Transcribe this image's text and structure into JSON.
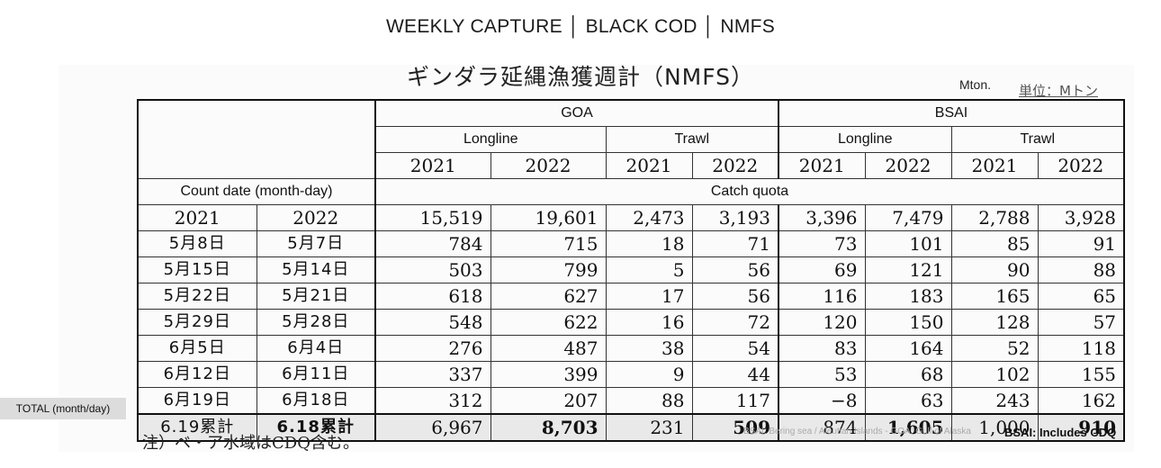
{
  "header_title": "WEEKLY CAPTURE │ BLACK COD │ NMFS",
  "jp_title": "ギンダラ延縄漁獲週計（NMFS）",
  "unit_en": "Mton.",
  "unit_jp": "単位：Mトン",
  "table": {
    "goa": "GOA",
    "bsai": "BSAI",
    "longline": "Longline",
    "trawl": "Trawl",
    "years": [
      "2021",
      "2022",
      "2021",
      "2022",
      "2021",
      "2022",
      "2021",
      "2022"
    ],
    "count_date": "Count date (month-day)",
    "catch_quota": "Catch quota",
    "quota_years": [
      "2021",
      "2022"
    ],
    "quota_values": [
      "15,519",
      "19,601",
      "2,473",
      "3,193",
      "3,396",
      "7,479",
      "2,788",
      "3,928"
    ],
    "rows": [
      {
        "d2021": "5月8日",
        "d2022": "5月7日",
        "values": [
          "784",
          "715",
          "18",
          "71",
          "73",
          "101",
          "85",
          "91"
        ]
      },
      {
        "d2021": "5月15日",
        "d2022": "5月14日",
        "values": [
          "503",
          "799",
          "5",
          "56",
          "69",
          "121",
          "90",
          "88"
        ]
      },
      {
        "d2021": "5月22日",
        "d2022": "5月21日",
        "values": [
          "618",
          "627",
          "17",
          "56",
          "116",
          "183",
          "165",
          "65"
        ]
      },
      {
        "d2021": "5月29日",
        "d2022": "5月28日",
        "values": [
          "548",
          "622",
          "16",
          "72",
          "120",
          "150",
          "128",
          "57"
        ]
      },
      {
        "d2021": "6月5日",
        "d2022": "6月4日",
        "values": [
          "276",
          "487",
          "38",
          "54",
          "83",
          "164",
          "52",
          "118"
        ]
      },
      {
        "d2021": "6月12日",
        "d2022": "6月11日",
        "values": [
          "337",
          "399",
          "9",
          "44",
          "53",
          "68",
          "102",
          "155"
        ]
      },
      {
        "d2021": "6月19日",
        "d2022": "6月18日",
        "values": [
          "312",
          "207",
          "88",
          "117",
          "−8",
          "63",
          "243",
          "162"
        ]
      }
    ],
    "total": {
      "d2021": "6.19累計",
      "d2022": "6.18累計",
      "values": [
        "6,967",
        "8,703",
        "231",
        "509",
        "874",
        "1,605",
        "1,000",
        "910"
      ]
    }
  },
  "total_label": "TOTAL (month/day)",
  "footnote_jp": "注）ベ・ア水域はCDQ含む。",
  "footnote_small": "BSAI: Bering sea / Aleutian Islands - GOA: Gulf of Alaska",
  "footnote_bsai": "BSAI: Includes CDQ"
}
